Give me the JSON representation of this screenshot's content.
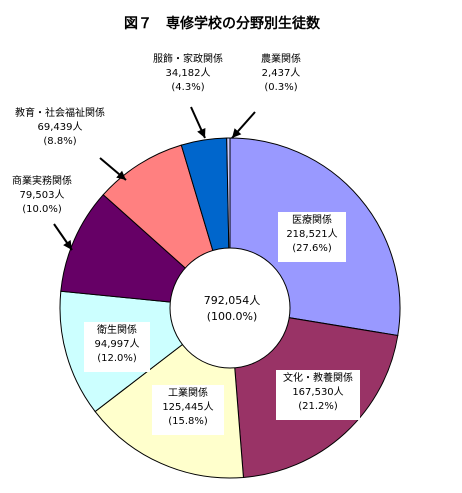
{
  "chart_data": {
    "type": "pie",
    "title": "図７　専修学校の分野別生徒数",
    "center_value": "792,054人",
    "center_percent": "(100.0%)",
    "slices": [
      {
        "name": "医療関係",
        "value": 218521,
        "value_label": "218,521人",
        "percent": "(27.6%)",
        "color": "#9999ff"
      },
      {
        "name": "文化・教養関係",
        "value": 167530,
        "value_label": "167,530人",
        "percent": "(21.2%)",
        "color": "#993366"
      },
      {
        "name": "工業関係",
        "value": 125445,
        "value_label": "125,445人",
        "percent": "(15.8%)",
        "color": "#ffffcc"
      },
      {
        "name": "衛生関係",
        "value": 94997,
        "value_label": "94,997人",
        "percent": "(12.0%)",
        "color": "#ccffff"
      },
      {
        "name": "商業実務関係",
        "value": 79503,
        "value_label": "79,503人",
        "percent": "(10.0%)",
        "color": "#660066"
      },
      {
        "name": "教育・社会福祉関係",
        "value": 69439,
        "value_label": "69,439人",
        "percent": "(8.8%)",
        "color": "#ff8080"
      },
      {
        "name": "服飾・家政関係",
        "value": 34182,
        "value_label": "34,182人",
        "percent": "(4.3%)",
        "color": "#0066cc"
      },
      {
        "name": "農業関係",
        "value": 2437,
        "value_label": "2,437人",
        "percent": "(0.3%)",
        "color": "#ccccff"
      }
    ]
  }
}
